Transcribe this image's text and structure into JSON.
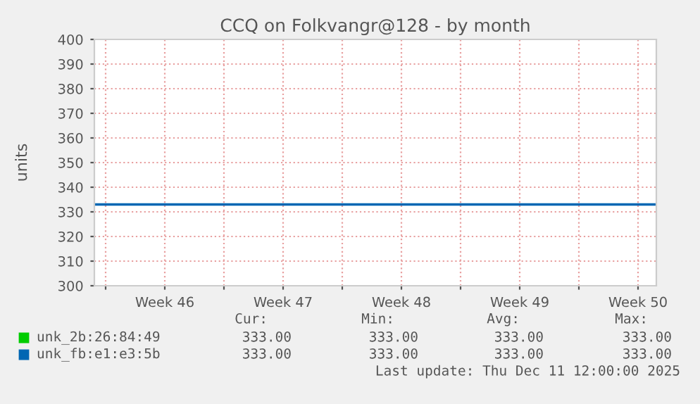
{
  "chart_data": {
    "type": "line",
    "title": "CCQ on Folkvangr@128 - by month",
    "ylabel": "units",
    "x": [
      "2025-11-09T08:00",
      "2025-11-17T00:00",
      "2025-11-24T00:00",
      "2025-12-01T00:00",
      "2025-12-08T00:00",
      "2025-12-12T14:00"
    ],
    "series": [
      {
        "name": "unk_2b:26:84:49",
        "color": "#00cc00",
        "values": [
          null,
          null,
          null,
          null,
          null,
          null
        ]
      },
      {
        "name": "unk_fb:e1:e3:5b",
        "color": "#0066b3",
        "values": [
          333,
          333,
          333,
          333,
          333,
          333
        ]
      }
    ],
    "xlim": [
      "2025-11-09T08:00",
      "2025-12-12T14:00"
    ],
    "xticks": [
      {
        "value": "2025-11-10T00:00",
        "label": null
      },
      {
        "value": "2025-11-13T12:00",
        "label": "Week 46"
      },
      {
        "value": "2025-11-17T00:00",
        "label": null
      },
      {
        "value": "2025-11-20T12:00",
        "label": "Week 47"
      },
      {
        "value": "2025-11-24T00:00",
        "label": null
      },
      {
        "value": "2025-11-27T12:00",
        "label": "Week 48"
      },
      {
        "value": "2025-12-01T00:00",
        "label": null
      },
      {
        "value": "2025-12-04T12:00",
        "label": "Week 49"
      },
      {
        "value": "2025-12-08T00:00",
        "label": null
      },
      {
        "value": "2025-12-11T12:00",
        "label": "Week 50"
      }
    ],
    "ylim": [
      300,
      400
    ],
    "yticks": [
      300,
      310,
      320,
      330,
      340,
      350,
      360,
      370,
      380,
      390,
      400
    ],
    "grid": true,
    "legend": "bottom",
    "annotations": [
      "Cur:",
      "Min:",
      "Avg:",
      "Max:",
      "333.00",
      "333.00",
      "333.00",
      "333.00",
      "333.00",
      "333.00",
      "333.00",
      "333.00",
      "Last update: Thu Dec 11 12:00:00 2025"
    ]
  }
}
